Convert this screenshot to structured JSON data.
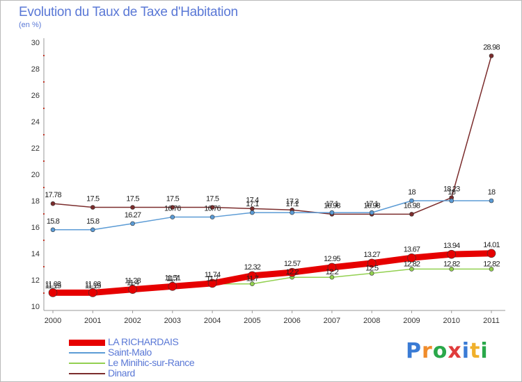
{
  "title": "Evolution du Taux de Taxe d'Habitation",
  "subtitle": "(en %)",
  "logo_text": "Proxiti",
  "chart_data": {
    "type": "line",
    "title": "Evolution du Taux de Taxe d'Habitation",
    "ylabel": "(en %)",
    "xlabel": "",
    "x": [
      "2000",
      "2001",
      "2002",
      "2003",
      "2004",
      "2005",
      "2006",
      "2007",
      "2008",
      "2009",
      "2010",
      "2011"
    ],
    "ylim": [
      10,
      30
    ],
    "yticks": [
      "10",
      "12",
      "14",
      "16",
      "18",
      "20",
      "22",
      "24",
      "26",
      "28",
      "30"
    ],
    "grid": false,
    "legend": "bottom-left",
    "series": [
      {
        "name": "LA RICHARDAIS",
        "color": "#e60000",
        "values": [
          11.03,
          11.03,
          11.28,
          11.51,
          11.74,
          12.32,
          12.57,
          12.95,
          13.27,
          13.67,
          13.94,
          14.01
        ],
        "labels": [
          "11.03",
          "11.03",
          "11.28",
          "11.51",
          "11.74",
          "12.32",
          "12.57",
          "12.95",
          "13.27",
          "13.67",
          "13.94",
          "14.01"
        ]
      },
      {
        "name": "Saint-Malo",
        "color": "#5b9bd5",
        "values": [
          15.8,
          15.8,
          16.27,
          16.76,
          16.76,
          17.1,
          17.1,
          17.1,
          17.1,
          18,
          18,
          18
        ],
        "labels": [
          "15.8",
          "15.8",
          "16.27",
          "16.76",
          "16.76",
          "17.1",
          "17.1",
          "17.1",
          "17.1",
          "18",
          "18",
          "18"
        ]
      },
      {
        "name": "Le Minihic-sur-Rance",
        "color": "#92d050",
        "values": [
          11.15,
          11.15,
          11.4,
          11.7,
          11.7,
          11.7,
          12.2,
          12.2,
          12.5,
          12.82,
          12.82,
          12.82
        ],
        "labels": [
          "11.15",
          "11.15",
          "11.4",
          "11.7",
          "11.7",
          "11.7",
          "12.2",
          "12.2",
          "12.5",
          "12.82",
          "12.82",
          "12.82"
        ]
      },
      {
        "name": "Dinard",
        "color": "#7b2c2c",
        "values": [
          17.78,
          17.5,
          17.5,
          17.5,
          17.5,
          17.4,
          17.3,
          16.98,
          16.98,
          16.98,
          18.23,
          28.98
        ],
        "labels": [
          "17.78",
          "17.5",
          "17.5",
          "17.5",
          "17.5",
          "17.4",
          "17.3",
          "16.98",
          "16.98",
          "16.98",
          "18.23",
          "28.98"
        ]
      }
    ]
  }
}
